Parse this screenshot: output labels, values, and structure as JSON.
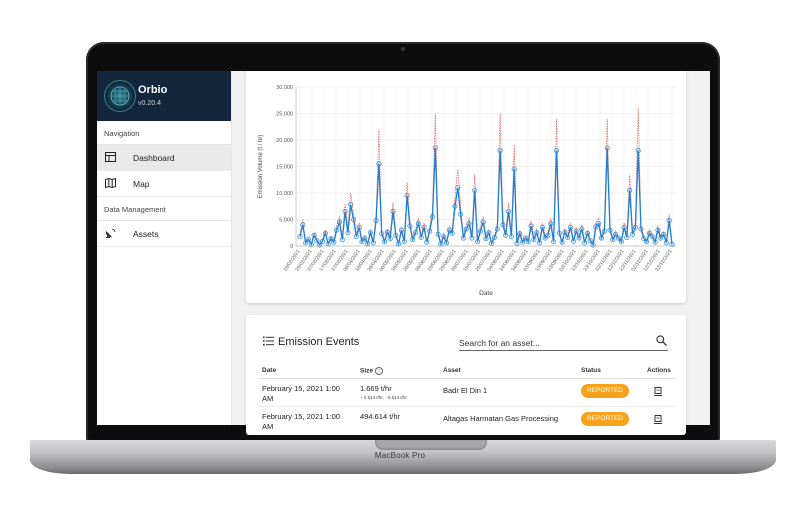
{
  "device": {
    "label": "MacBook Pro"
  },
  "app": {
    "name": "Orbio",
    "version": "v0.20.4"
  },
  "sidebar": {
    "sections": [
      {
        "title": "Navigation",
        "items": [
          {
            "label": "Dashboard",
            "icon": "dashboard-icon",
            "active": true
          },
          {
            "label": "Map",
            "icon": "map-icon",
            "active": false
          }
        ]
      },
      {
        "title": "Data Management",
        "items": [
          {
            "label": "Assets",
            "icon": "satellite-dish-icon",
            "active": false
          }
        ]
      }
    ]
  },
  "chart_data": {
    "type": "line",
    "title": "",
    "xlabel": "Date",
    "ylabel": "Emission Volume (t / hr)",
    "ylim": [
      0,
      30000
    ],
    "yticks": [
      0,
      5000,
      10000,
      15000,
      20000,
      25000,
      30000
    ],
    "ytick_labels": [
      "0",
      "5,000",
      "10,000",
      "15,000",
      "20,000",
      "25,000",
      "30,000"
    ],
    "xtick_labels": [
      "15/02/2021",
      "25/02/2021",
      "07/03/2021",
      "17/03/2021",
      "27/03/2021",
      "06/04/2021",
      "16/04/2021",
      "26/04/2021",
      "06/05/2021",
      "16/05/2021",
      "26/05/2021",
      "05/06/2021",
      "15/06/2021",
      "25/06/2021",
      "05/07/2021",
      "15/07/2021",
      "25/07/2021",
      "04/08/2021",
      "14/08/2021",
      "24/08/2021",
      "03/09/2021",
      "13/09/2021",
      "23/09/2021",
      "03/10/2021",
      "13/10/2021",
      "23/10/2021",
      "02/11/2021",
      "12/11/2021",
      "22/11/2021",
      "02/12/2021",
      "12/12/2021",
      "22/12/2021"
    ],
    "grid": true,
    "colors": {
      "main": "#1f7fd1",
      "bound": "#e05a4a"
    },
    "series": [
      {
        "values": [
          1800,
          4000,
          600,
          1200,
          300,
          2000,
          1000,
          200,
          900,
          2400,
          400,
          1400,
          700,
          3000,
          4500,
          1200,
          6500,
          2500,
          7800,
          5000,
          1800,
          3500,
          800,
          1500,
          400,
          2500,
          600,
          4800,
          15500,
          2300,
          800,
          2600,
          1400,
          6500,
          2000,
          400,
          3000,
          800,
          9500,
          3800,
          1200,
          2500,
          4200,
          1600,
          3500,
          700,
          2800,
          5500,
          18500,
          2200,
          400,
          1800,
          600,
          3000,
          2400,
          7500,
          11000,
          6000,
          1500,
          3200,
          4200,
          1500,
          10500,
          800,
          2800,
          4500,
          1400,
          2500,
          500,
          1600,
          3200,
          18000,
          4000,
          2000,
          6500,
          1800,
          14500,
          500,
          2300,
          700,
          1500,
          800,
          3800,
          1200,
          2500,
          600,
          3500,
          1500,
          2000,
          4200,
          800,
          18000,
          2400,
          700,
          2600,
          1600,
          3500,
          900,
          2800,
          1500,
          3200,
          600,
          2400,
          1000,
          200,
          3600,
          4200,
          1500,
          2800,
          18500,
          3000,
          1200,
          2200,
          1500,
          800,
          3500,
          1600,
          10500,
          2200,
          3500,
          18000,
          3200,
          1400,
          800,
          2400,
          1800,
          700,
          3000,
          1500,
          2200,
          600,
          4800,
          300
        ]
      },
      {
        "values": [
          2200,
          5000,
          800,
          1500,
          400,
          2500,
          1300,
          300,
          1200,
          3000,
          500,
          1800,
          900,
          3800,
          5600,
          1500,
          8000,
          3200,
          10000,
          6200,
          2200,
          4400,
          1000,
          1900,
          500,
          3100,
          800,
          6000,
          22000,
          2900,
          1000,
          3200,
          1800,
          8200,
          2500,
          500,
          3800,
          1000,
          12000,
          4700,
          1500,
          3100,
          5300,
          2000,
          4400,
          900,
          3500,
          6900,
          25000,
          2800,
          500,
          2300,
          800,
          3800,
          3000,
          9400,
          14500,
          7500,
          1900,
          4000,
          5300,
          1900,
          13500,
          1000,
          3500,
          5600,
          1800,
          3100,
          600,
          2000,
          4000,
          25000,
          5000,
          2500,
          8100,
          2300,
          19000,
          600,
          2900,
          900,
          1900,
          1000,
          4800,
          1500,
          3100,
          800,
          4400,
          1900,
          2500,
          5300,
          1000,
          24000,
          3000,
          900,
          3200,
          2000,
          4400,
          1100,
          3500,
          1900,
          4000,
          800,
          3000,
          1300,
          300,
          4500,
          5300,
          1900,
          3500,
          24000,
          3800,
          1500,
          2800,
          1900,
          1000,
          4400,
          2000,
          13500,
          2800,
          4400,
          26000,
          4000,
          1800,
          1000,
          3000,
          2300,
          900,
          3800,
          1900,
          2800,
          800,
          6000,
          400
        ]
      }
    ]
  },
  "events": {
    "title": "Emission Events",
    "search_placeholder": "Search for an asset...",
    "columns": {
      "date": "Date",
      "size": "Size",
      "asset": "Asset",
      "status": "Status",
      "actions": "Actions"
    },
    "rows": [
      {
        "date": "February 15, 2021 1:00 AM",
        "size": "1.669 t/hr",
        "size_range": "+ 0.514 t/hr, - 0.514 t/hr",
        "asset": "Badr El Din 1",
        "status": "REPORTED"
      },
      {
        "date": "February 15, 2021 1:00 AM",
        "size": "494.614 t/hr",
        "size_range": "",
        "asset": "Altagas Harmatan Gas Processing",
        "status": "REPORTED"
      }
    ]
  }
}
